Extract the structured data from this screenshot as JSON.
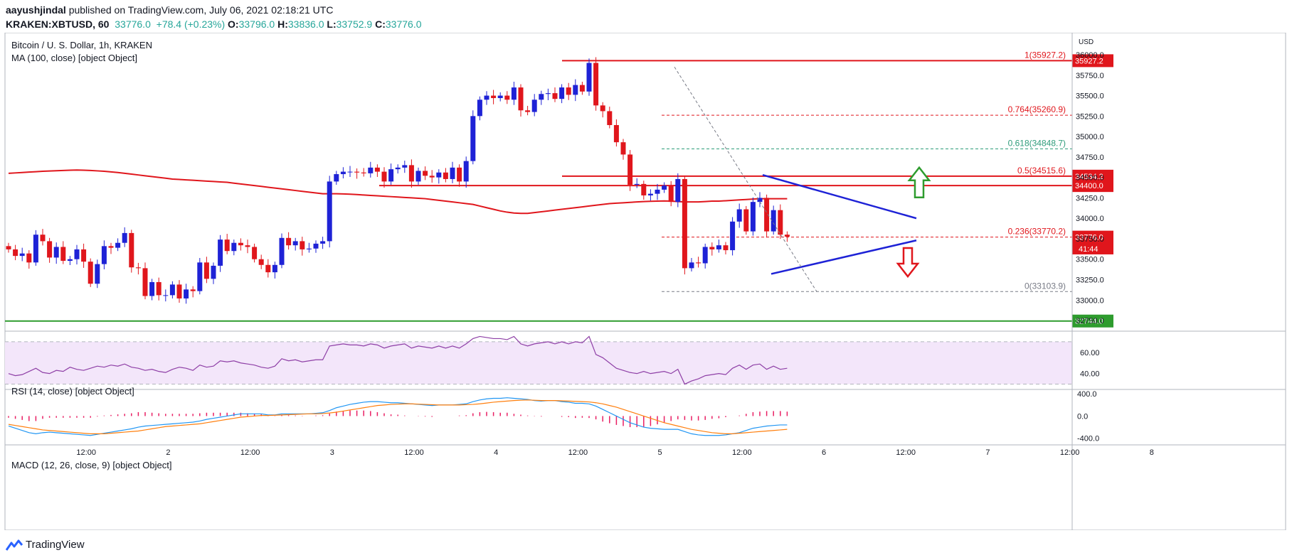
{
  "header": {
    "author": "aayushjindal",
    "published_text": "published on TradingView.com, July 06, 2021 02:18:21 UTC",
    "symbol": "KRAKEN:XBTUSD, 60",
    "last": "33776.0",
    "change": "+78.4 (+0.23%)",
    "open_label": "O:",
    "open": "33796.0",
    "high_label": "H:",
    "high": "33836.0",
    "low_label": "L:",
    "low": "33752.9",
    "close_label": "C:",
    "close": "33776.0"
  },
  "legend": {
    "title": "Bitcoin / U. S. Dollar, 1h, KRAKEN",
    "ma": "MA (100, close) [object Object]",
    "rsi": "RSI (14, close) [object Object]",
    "macd": "MACD (12, 26, close, 9) [object Object]"
  },
  "footer": {
    "brand": "TradingView"
  },
  "colors": {
    "up": "#1e22d6",
    "down": "#e0161c",
    "ma": "#e0161c",
    "support": "#2e9c2e",
    "trend": "#1e22d6",
    "rsi": "#8e3fa6",
    "macd": "#2196f3",
    "signal": "#ff7f0e"
  },
  "chart_data": {
    "type": "candlestick",
    "title": "Bitcoin / U. S. Dollar, 1h, KRAKEN",
    "currency": "USD",
    "price_range": [
      32620,
      36200
    ],
    "price_ticks": [
      "36000.0",
      "35750.0",
      "35500.0",
      "35250.0",
      "35000.0",
      "34750.0",
      "34500.0",
      "34250.0",
      "34000.0",
      "33750.0",
      "33500.0",
      "33250.0",
      "33000.0",
      "32750.0"
    ],
    "time_labels": [
      "12:00",
      "2",
      "12:00",
      "3",
      "12:00",
      "4",
      "12:00",
      "5",
      "12:00",
      "6",
      "12:00",
      "7",
      "12:00",
      "8"
    ],
    "time_label_index": [
      12,
      24,
      36,
      48,
      60,
      72,
      84,
      96,
      108,
      120,
      132,
      144,
      156,
      168
    ],
    "close_series": [
      33620,
      33540,
      33570,
      33460,
      33800,
      33720,
      33520,
      33650,
      33480,
      33500,
      33620,
      33470,
      33200,
      33440,
      33660,
      33640,
      33700,
      33820,
      33400,
      33390,
      33050,
      33220,
      33060,
      33060,
      33190,
      33020,
      33130,
      33110,
      33460,
      33260,
      33420,
      33740,
      33600,
      33700,
      33670,
      33650,
      33500,
      33430,
      33340,
      33430,
      33760,
      33670,
      33720,
      33620,
      33630,
      33690,
      33720,
      34450,
      34540,
      34570,
      34570,
      34560,
      34550,
      34620,
      34570,
      34450,
      34600,
      34620,
      34650,
      34450,
      34580,
      34520,
      34500,
      34560,
      34480,
      34620,
      34450,
      34700,
      35250,
      35450,
      35500,
      35470,
      35500,
      35450,
      35600,
      35320,
      35300,
      35450,
      35520,
      35530,
      35460,
      35600,
      35510,
      35630,
      35550,
      35900,
      35380,
      35310,
      35140,
      34930,
      34780,
      34410,
      34420,
      34280,
      34300,
      34350,
      34400,
      34200,
      34480,
      33390,
      33460,
      33450,
      33650,
      33620,
      33670,
      33610,
      33960,
      34110,
      33840,
      34200,
      34250,
      33840,
      34100,
      33800,
      33776
    ],
    "ma_series": [
      34550,
      34555,
      34560,
      34565,
      34570,
      34575,
      34578,
      34582,
      34585,
      34588,
      34590,
      34588,
      34585,
      34580,
      34575,
      34568,
      34560,
      34550,
      34540,
      34530,
      34520,
      34510,
      34500,
      34490,
      34480,
      34475,
      34470,
      34465,
      34460,
      34455,
      34450,
      34445,
      34440,
      34430,
      34420,
      34410,
      34400,
      34390,
      34380,
      34370,
      34360,
      34350,
      34340,
      34330,
      34320,
      34310,
      34300,
      34300,
      34300,
      34298,
      34295,
      34290,
      34285,
      34280,
      34275,
      34270,
      34265,
      34260,
      34255,
      34250,
      34245,
      34240,
      34230,
      34220,
      34210,
      34200,
      34190,
      34180,
      34170,
      34150,
      34130,
      34110,
      34090,
      34075,
      34065,
      34060,
      34060,
      34070,
      34080,
      34090,
      34100,
      34110,
      34120,
      34130,
      34140,
      34150,
      34160,
      34170,
      34180,
      34185,
      34190,
      34195,
      34200,
      34205,
      34208,
      34210,
      34212,
      34210,
      34205,
      34200,
      34200,
      34200,
      34205,
      34210,
      34210,
      34215,
      34220,
      34225,
      34230,
      34235,
      34240,
      34240,
      34240,
      34240,
      34240
    ],
    "levels": [
      {
        "label": "1(35927.2)",
        "value": 35927.2,
        "axis": "35927.2"
      },
      {
        "label": "0.764(35260.9)",
        "value": 35260.9
      },
      {
        "label": "0.618(34848.7)",
        "value": 34848.7
      },
      {
        "label": "0.5(34515.6)",
        "value": 34515.6,
        "axis": "34534.2"
      },
      {
        "label": "0.236(33770.2)",
        "value": 33770.2,
        "axis": "33776.0"
      },
      {
        "label": "0(33103.9)",
        "value": 33103.9
      }
    ],
    "resistance": {
      "value": 34400,
      "axis": "34400.0"
    },
    "support": {
      "value": 32744,
      "axis": "32744.0"
    },
    "countdown": "41:44",
    "rsi": {
      "range": [
        25,
        80
      ],
      "ticks": [
        "60.00",
        "40.00"
      ],
      "upper": 70,
      "lower": 30,
      "values": [
        40,
        38,
        39,
        42,
        45,
        41,
        40,
        43,
        42,
        46,
        44,
        43,
        45,
        47,
        46,
        48,
        47,
        49,
        46,
        45,
        43,
        44,
        42,
        41,
        44,
        46,
        45,
        43,
        48,
        46,
        47,
        52,
        51,
        52,
        50,
        49,
        48,
        46,
        45,
        47,
        54,
        52,
        53,
        51,
        52,
        53,
        53,
        66,
        67,
        68,
        67,
        67,
        66,
        68,
        67,
        64,
        66,
        67,
        68,
        64,
        66,
        65,
        64,
        66,
        64,
        66,
        64,
        68,
        73,
        75,
        74,
        73,
        73,
        72,
        75,
        68,
        66,
        68,
        69,
        70,
        68,
        70,
        68,
        70,
        69,
        75,
        58,
        55,
        50,
        45,
        43,
        41,
        40,
        42,
        40,
        41,
        42,
        40,
        44,
        30,
        33,
        35,
        38,
        39,
        40,
        39,
        45,
        48,
        44,
        48,
        49,
        44,
        47,
        44,
        45
      ]
    },
    "macd": {
      "range": [
        -520,
        480
      ],
      "ticks": [
        "400.0",
        "0.0",
        "-400.0"
      ],
      "macd": [
        -180,
        -220,
        -260,
        -300,
        -320,
        -300,
        -290,
        -300,
        -310,
        -320,
        -330,
        -340,
        -350,
        -330,
        -310,
        -290,
        -270,
        -250,
        -230,
        -200,
        -180,
        -170,
        -160,
        -150,
        -140,
        -130,
        -120,
        -110,
        -90,
        -60,
        -40,
        -20,
        0,
        20,
        40,
        40,
        40,
        40,
        20,
        20,
        40,
        40,
        40,
        40,
        40,
        50,
        60,
        100,
        150,
        180,
        210,
        230,
        250,
        260,
        260,
        250,
        240,
        240,
        230,
        220,
        210,
        200,
        190,
        200,
        200,
        200,
        210,
        220,
        260,
        290,
        310,
        320,
        320,
        330,
        320,
        310,
        300,
        280,
        270,
        280,
        280,
        260,
        250,
        230,
        230,
        220,
        180,
        120,
        60,
        0,
        -60,
        -120,
        -160,
        -200,
        -220,
        -230,
        -240,
        -240,
        -240,
        -280,
        -320,
        -340,
        -350,
        -350,
        -350,
        -340,
        -320,
        -300,
        -260,
        -220,
        -200,
        -180,
        -170,
        -160,
        -160
      ],
      "signal": [
        -150,
        -170,
        -190,
        -210,
        -230,
        -250,
        -260,
        -270,
        -280,
        -290,
        -300,
        -310,
        -320,
        -320,
        -320,
        -310,
        -300,
        -290,
        -280,
        -270,
        -250,
        -230,
        -210,
        -190,
        -180,
        -170,
        -160,
        -150,
        -140,
        -120,
        -100,
        -80,
        -60,
        -40,
        -20,
        -10,
        0,
        10,
        10,
        15,
        20,
        25,
        30,
        35,
        40,
        40,
        45,
        55,
        70,
        90,
        110,
        130,
        150,
        170,
        190,
        200,
        210,
        215,
        220,
        220,
        215,
        210,
        205,
        200,
        200,
        200,
        200,
        205,
        210,
        220,
        235,
        250,
        260,
        270,
        280,
        285,
        290,
        285,
        280,
        280,
        280,
        275,
        270,
        265,
        260,
        255,
        240,
        220,
        190,
        160,
        120,
        80,
        40,
        0,
        -40,
        -80,
        -120,
        -150,
        -180,
        -210,
        -240,
        -260,
        -280,
        -300,
        -310,
        -320,
        -320,
        -310,
        -300,
        -290,
        -280,
        -270,
        -260,
        -250,
        -240
      ],
      "hist_positive_color": "#e91e63"
    }
  }
}
